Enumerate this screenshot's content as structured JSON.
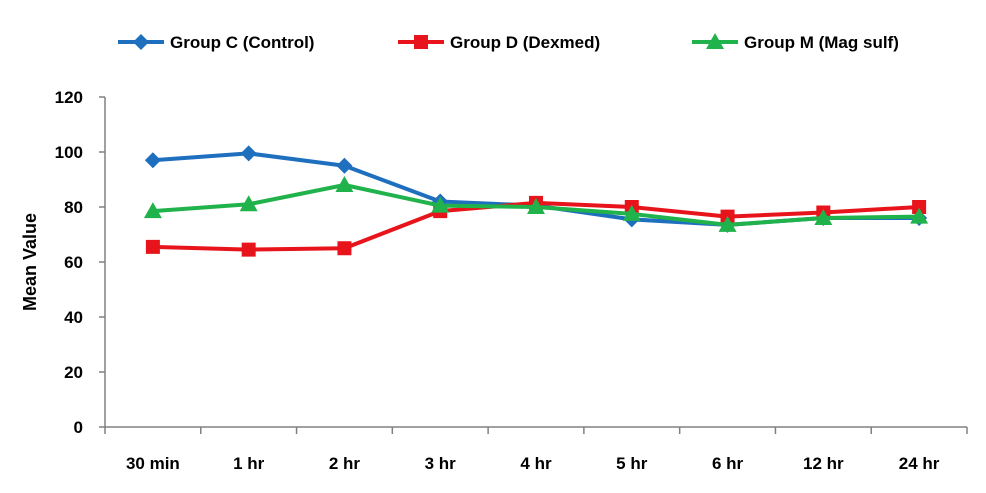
{
  "chart_data": {
    "type": "line",
    "title": "",
    "xlabel": "",
    "ylabel": "Mean Value",
    "ylim": [
      0,
      120
    ],
    "yticks": [
      0,
      20,
      40,
      60,
      80,
      100,
      120
    ],
    "categories": [
      "30 min",
      "1 hr",
      "2 hr",
      "3 hr",
      "4 hr",
      "5 hr",
      "6 hr",
      "12 hr",
      "24 hr"
    ],
    "grid": false,
    "legend_position": "top",
    "series": [
      {
        "name": "Group C (Control)",
        "color": "#1f6fbf",
        "marker": "diamond",
        "values": [
          97,
          99.5,
          95,
          82,
          80.5,
          75.5,
          73.5,
          76,
          76
        ]
      },
      {
        "name": "Group D (Dexmed)",
        "color": "#e8141b",
        "marker": "square",
        "values": [
          65.5,
          64.5,
          65,
          78.5,
          81.5,
          80,
          76.5,
          78,
          80
        ]
      },
      {
        "name": "Group M (Mag sulf)",
        "color": "#21b34b",
        "marker": "triangle",
        "values": [
          78.5,
          81,
          88,
          80.5,
          80,
          77.5,
          73.5,
          76,
          76.5
        ]
      }
    ]
  }
}
